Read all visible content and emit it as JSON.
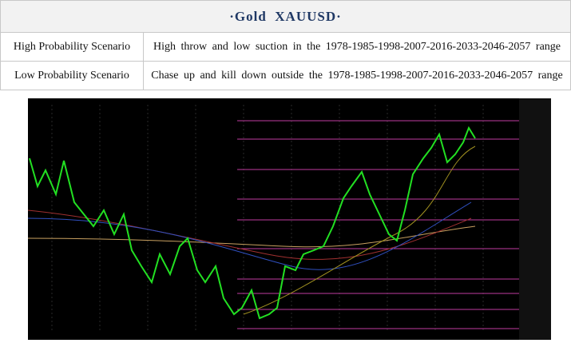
{
  "header": {
    "title": "·Gold  XAUUSD·"
  },
  "table": {
    "rows": [
      [
        "High Probability Scenario",
        "High throw and low suction in the 1978-1985-1998-2007-2016-2033-2046-2057 range"
      ],
      [
        "Low Probability Scenario",
        "Chase up and kill down outside the 1978-1985-1998-2007-2016-2033-2046-2057 range"
      ]
    ]
  }
}
